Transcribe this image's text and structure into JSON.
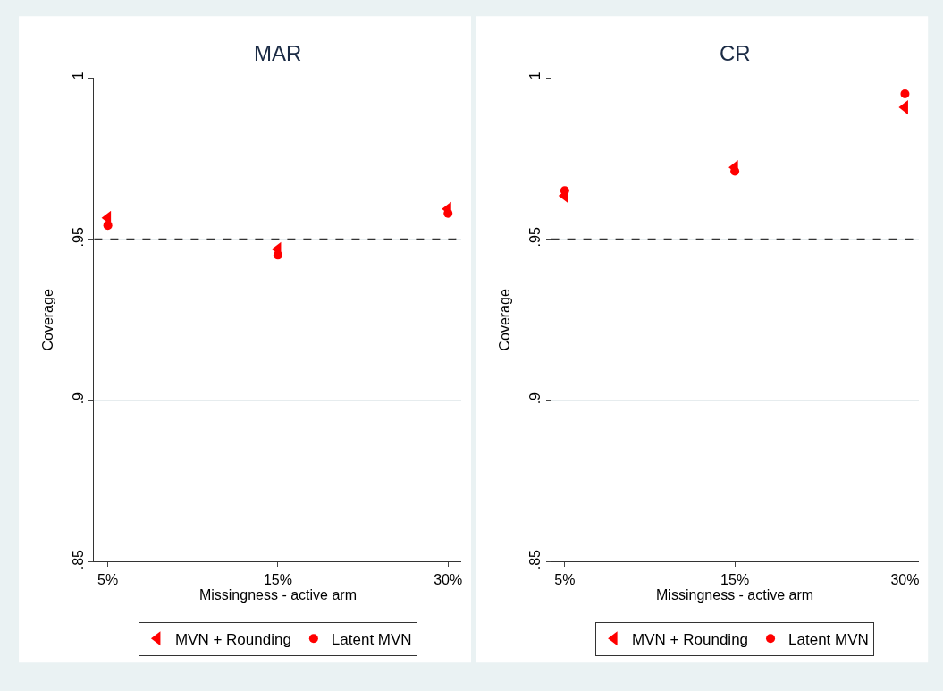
{
  "chart_data": [
    {
      "type": "scatter",
      "title": "MAR",
      "xlabel": "Missingness - active arm",
      "ylabel": "Coverage",
      "categories": [
        "5%",
        "15%",
        "30%"
      ],
      "ylim": [
        0.85,
        1
      ],
      "yticks": [
        {
          "value": 0.85,
          "label": ".85"
        },
        {
          "value": 0.9,
          "label": ".9"
        },
        {
          "value": 0.95,
          "label": ".95"
        },
        {
          "value": 1,
          "label": "1"
        }
      ],
      "grid": "y",
      "legend": "bottom",
      "series": [
        {
          "name": "MVN + Rounding",
          "color": "#ff0000",
          "marker": "triangle",
          "values": [
            0.9566,
            0.9469,
            0.9594
          ]
        },
        {
          "name": "Latent MVN",
          "color": "#ff0000",
          "marker": "circle",
          "values": [
            0.9543,
            0.9451,
            0.958
          ]
        }
      ],
      "ref_lines": [
        {
          "axis": "y",
          "value": 0.95,
          "color": "#333333",
          "line_style": "dashed"
        }
      ]
    },
    {
      "type": "scatter",
      "title": "CR",
      "xlabel": "Missingness - active arm",
      "ylabel": "Coverage",
      "categories": [
        "5%",
        "15%",
        "30%"
      ],
      "ylim": [
        0.85,
        1
      ],
      "yticks": [
        {
          "value": 0.85,
          "label": ".85"
        },
        {
          "value": 0.9,
          "label": ".9"
        },
        {
          "value": 0.95,
          "label": ".95"
        },
        {
          "value": 1,
          "label": "1"
        }
      ],
      "grid": "y",
      "legend": "bottom",
      "series": [
        {
          "name": "MVN + Rounding",
          "color": "#ff0000",
          "marker": "triangle",
          "values": [
            0.9635,
            0.9723,
            0.9909
          ]
        },
        {
          "name": "Latent MVN",
          "color": "#ff0000",
          "marker": "circle",
          "values": [
            0.9651,
            0.9711,
            0.9951
          ]
        }
      ],
      "ref_lines": [
        {
          "axis": "y",
          "value": 0.95,
          "color": "#333333",
          "line_style": "dashed"
        }
      ]
    }
  ]
}
